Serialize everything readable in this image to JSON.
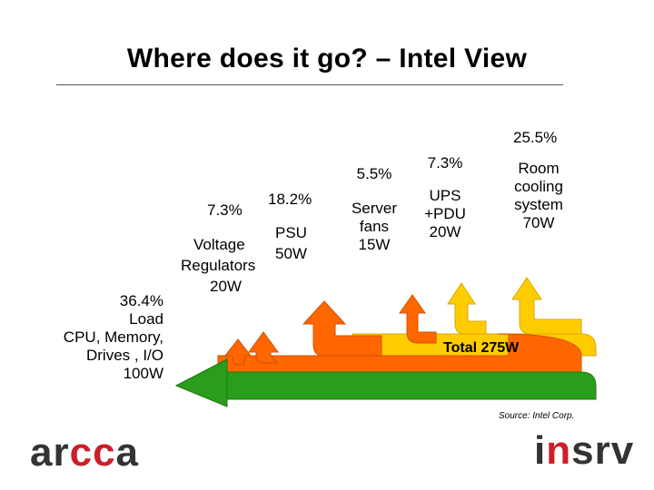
{
  "title": "Where does it go? – Intel View",
  "labels": {
    "load_pct": "36.4%",
    "load_line1": "Load",
    "load_line2": "CPU, Memory,",
    "load_line3": "Drives , I/O",
    "load_watts": "100W",
    "vr_pct": "7.3%",
    "vr_line1": "Voltage",
    "vr_line2": "Regulators",
    "vr_watts": "20W",
    "psu_pct": "18.2%",
    "psu_line1": "PSU",
    "psu_watts": "50W",
    "fans_pct": "5.5%",
    "fans_line1": "Server",
    "fans_line2": "fans",
    "fans_watts": "15W",
    "ups_pct": "7.3%",
    "ups_line1": "UPS",
    "ups_line2": "+PDU",
    "ups_watts": "20W",
    "room_pct": "25.5%",
    "room_line1": "Room",
    "room_line2": "cooling",
    "room_line3": "system",
    "room_watts": "70W",
    "total": "Total 275W"
  },
  "source": "Source: Intel Corp.",
  "logos": {
    "left_a": "ar",
    "left_b": "cc",
    "left_c": "a",
    "right_a": "i",
    "right_b": "n",
    "right_c": "srv"
  },
  "colors": {
    "yellow": "#ffcc00",
    "orange": "#ff6600",
    "green": "#2a9d1a",
    "red": "#cc1f2a"
  }
}
